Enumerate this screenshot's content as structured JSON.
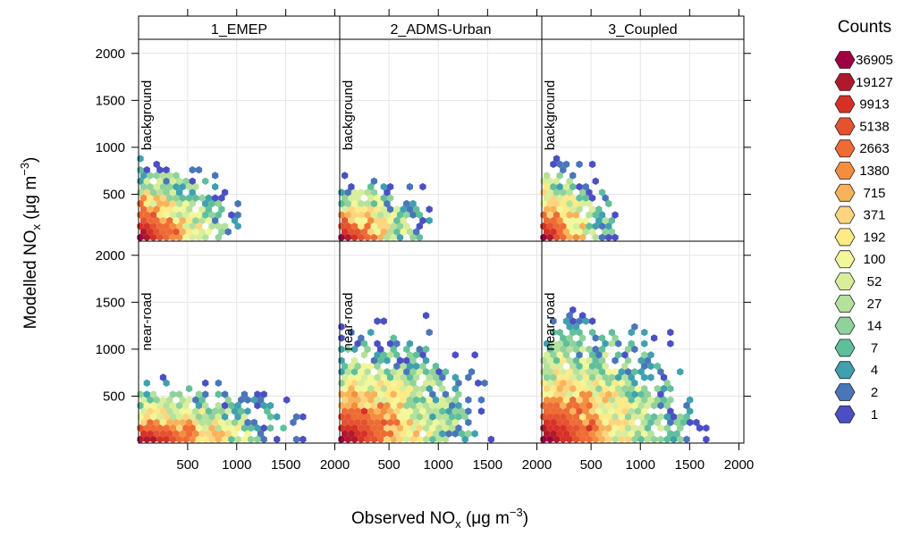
{
  "chart_data": {
    "type": "heatmap",
    "subtype": "hexbin-trellis",
    "xlabel": "Observed NO",
    "xlabel_sub": "x",
    "xlabel_unit": " (μg m",
    "xlabel_sup": "−3",
    "xlabel_close": ")",
    "ylabel": "Modelled NO",
    "ylabel_sub": "x",
    "ylabel_unit": " (μg m",
    "ylabel_sup": "−3",
    "ylabel_close": ")",
    "xlim": [
      0,
      2050
    ],
    "ylim": [
      0,
      2150
    ],
    "x_ticks": [
      500,
      1000,
      1500,
      2000
    ],
    "x_tick_labels": [
      "500",
      "1000",
      "1500",
      "2000"
    ],
    "y_ticks": [
      500,
      1000,
      1500,
      2000
    ],
    "y_tick_labels": [
      "500",
      "1000",
      "1500",
      "2000"
    ],
    "grid": true,
    "columns": [
      "1_EMEP",
      "2_ADMS-Urban",
      "3_Coupled"
    ],
    "rows": [
      "background",
      "near-road"
    ],
    "legend": {
      "title": "Counts",
      "position": "right",
      "levels": [
        "36905",
        "19127",
        "9913",
        "5138",
        "2663",
        "1380",
        "715",
        "371",
        "192",
        "100",
        "52",
        "27",
        "14",
        "7",
        "4",
        "2",
        "1"
      ],
      "colors": [
        "#9E0142",
        "#B2182B",
        "#D73027",
        "#E4522F",
        "#EE6B34",
        "#F38E3E",
        "#F8B35A",
        "#FDD57E",
        "#FEEA86",
        "#F2F79A",
        "#D8EE9B",
        "#B5E19B",
        "#8FD29A",
        "#5FBF9A",
        "#3FA0AE",
        "#4975B9",
        "#4B4FC3"
      ]
    },
    "panels": [
      {
        "column": "1_EMEP",
        "row": "background",
        "envelope": {
          "x_max": 1350,
          "y_max_at_origin": 900,
          "y_max": 900
        }
      },
      {
        "column": "2_ADMS-Urban",
        "row": "background",
        "envelope": {
          "x_max": 1150,
          "y_max_at_origin": 650,
          "y_max": 800
        }
      },
      {
        "column": "3_Coupled",
        "row": "background",
        "envelope": {
          "x_max": 1000,
          "y_max_at_origin": 850,
          "y_max": 850
        }
      },
      {
        "column": "1_EMEP",
        "row": "near-road",
        "envelope": {
          "x_max": 2000,
          "y_max_at_origin": 600,
          "y_max": 750
        }
      },
      {
        "column": "2_ADMS-Urban",
        "row": "near-road",
        "envelope": {
          "x_max": 1850,
          "y_max_at_origin": 1100,
          "y_max": 1400
        }
      },
      {
        "column": "3_Coupled",
        "row": "near-road",
        "envelope": {
          "x_max": 1950,
          "y_max_at_origin": 1200,
          "y_max": 1600
        }
      }
    ]
  }
}
